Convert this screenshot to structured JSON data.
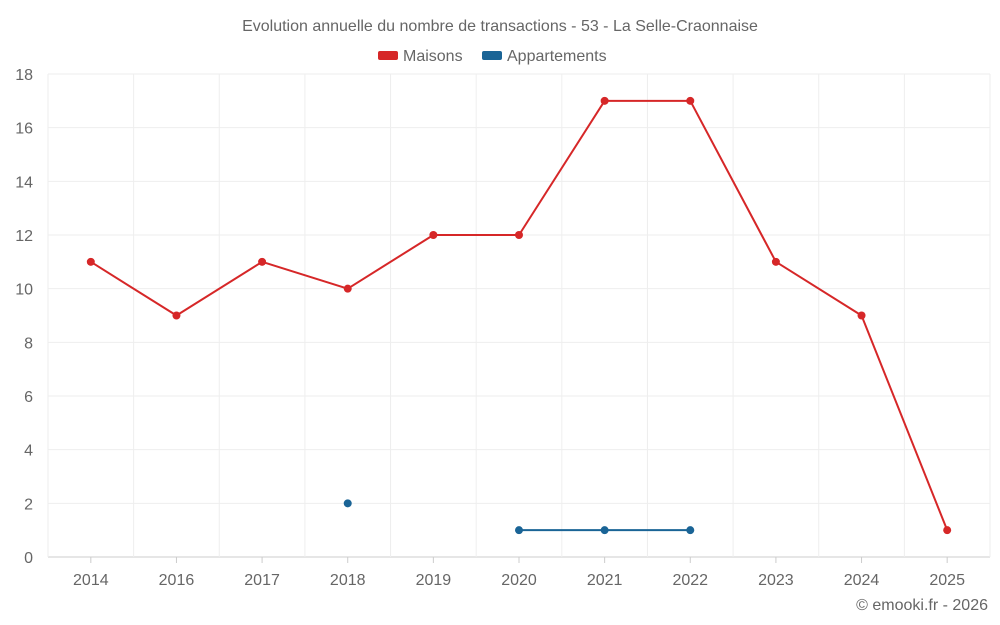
{
  "chart_data": {
    "type": "line",
    "title": "Evolution annuelle du nombre de transactions - 53 - La Selle-Craonnaise",
    "categories": [
      "2014",
      "2016",
      "2017",
      "2018",
      "2019",
      "2020",
      "2021",
      "2022",
      "2023",
      "2024",
      "2025"
    ],
    "series": [
      {
        "name": "Maisons",
        "color": "#d62728",
        "values": [
          11,
          9,
          11,
          10,
          12,
          12,
          17,
          17,
          11,
          9,
          1
        ]
      },
      {
        "name": "Appartements",
        "color": "#1a6496",
        "values": [
          null,
          null,
          null,
          2,
          null,
          1,
          1,
          1,
          null,
          null,
          null
        ]
      }
    ],
    "ylim": [
      0,
      18
    ],
    "yticks": [
      0,
      2,
      4,
      6,
      8,
      10,
      12,
      14,
      16,
      18
    ],
    "grid": true,
    "legend_position": "top-center",
    "xlabel": "",
    "ylabel": ""
  },
  "watermark": "© emooki.fr - 2026"
}
